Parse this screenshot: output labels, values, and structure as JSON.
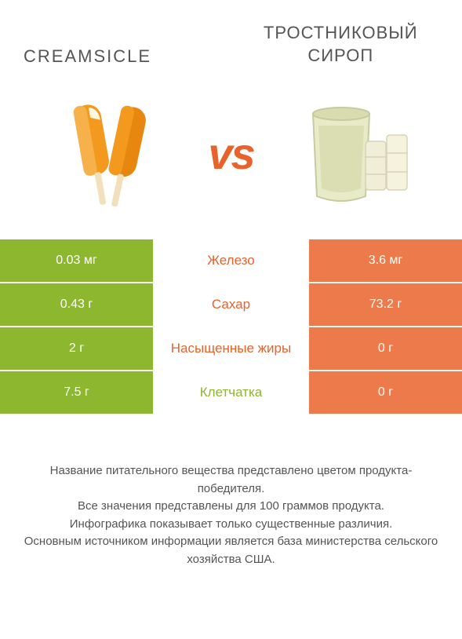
{
  "titles": {
    "left": "CREAMSICLE",
    "right": "ТРОСТНИКОВЫЙ СИРОП"
  },
  "vs_label": "vs",
  "colors": {
    "green": "#8cb72e",
    "green_text": "#8cb72e",
    "orange": "#ec7a4b",
    "orange_text": "#e8622c",
    "green_alt": "#7ba827"
  },
  "rows": [
    {
      "left": "0.03 мг",
      "mid": "Железо",
      "right": "3.6 мг",
      "winner": "right"
    },
    {
      "left": "0.43 г",
      "mid": "Сахар",
      "right": "73.2 г",
      "winner": "right"
    },
    {
      "left": "2 г",
      "mid": "Насыщенные жиры",
      "right": "0 г",
      "winner": "right"
    },
    {
      "left": "7.5 г",
      "mid": "Клетчатка",
      "right": "0 г",
      "winner": "left"
    }
  ],
  "footer_lines": [
    "Название питательного вещества представлено цветом продукта-победителя.",
    "Все значения представлены для 100 граммов продукта.",
    "Инфографика показывает только существенные различия.",
    "Основным источником информации является база министерства сельского хозяйства США."
  ]
}
